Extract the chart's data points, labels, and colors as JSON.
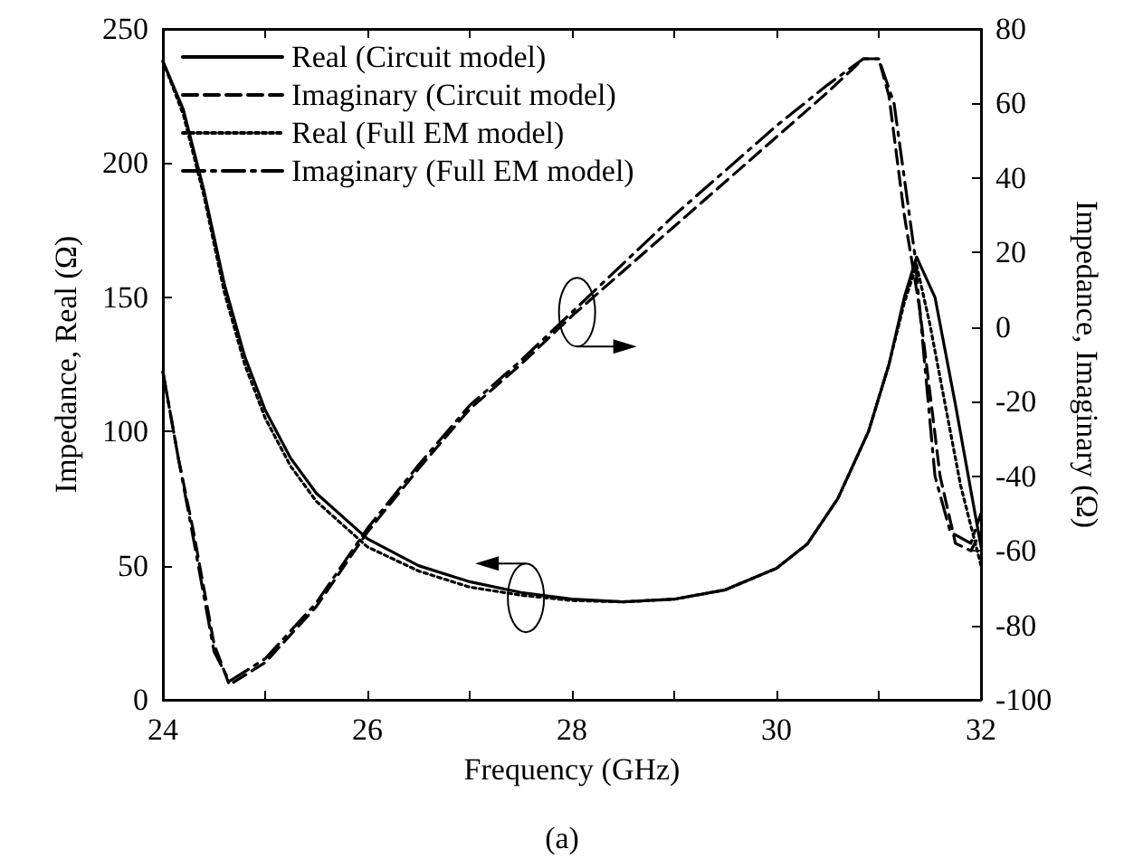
{
  "chart_data": {
    "type": "line",
    "xlabel": "Frequency (GHz)",
    "ylabel": "Impedance, Real (Ω)",
    "y2label": "Impedance, Imaginary (Ω)",
    "annotations": [
      "(a)"
    ],
    "xlim": [
      24,
      32
    ],
    "xticks": [
      24,
      {
        "value": 25,
        "label": null
      },
      26,
      {
        "value": 27,
        "label": null
      },
      28,
      {
        "value": 29,
        "label": null
      },
      30,
      {
        "value": 31,
        "label": null
      },
      32
    ],
    "ylim": [
      0,
      250
    ],
    "yticks": [
      0,
      50,
      100,
      150,
      200,
      250
    ],
    "y2lim": [
      -100,
      80
    ],
    "y2ticks": [
      -100,
      -80,
      -60,
      -40,
      -20,
      0,
      20,
      40,
      60,
      80
    ],
    "grid": false,
    "legend": "top left",
    "series": [
      {
        "name": "Real (Circuit model)",
        "color": "#000000",
        "line_style": "solid",
        "x": [
          24,
          24.2,
          24.4,
          24.6,
          24.8,
          25,
          25.25,
          25.5,
          26,
          26.5,
          27,
          27.5,
          28,
          28.5,
          29,
          29.5,
          30,
          30.3,
          30.6,
          30.9,
          31.1,
          31.25,
          31.37,
          31.55,
          31.75,
          32
        ],
        "values": [
          238,
          220,
          190,
          155,
          128,
          108,
          90,
          77,
          60,
          50,
          44,
          40,
          37.5,
          36.5,
          37.5,
          41,
          49,
          58,
          75,
          100,
          125,
          150,
          165,
          150,
          110,
          57
        ]
      },
      {
        "name": "Imaginary (Circuit model)",
        "color": "#000000",
        "line_style": "dashed",
        "axis": "y2",
        "x": [
          24,
          24.15,
          24.3,
          24.5,
          24.65,
          25,
          25.5,
          26,
          26.5,
          27,
          27.5,
          28,
          28.5,
          29,
          29.5,
          30,
          30.5,
          30.85,
          31,
          31.1,
          31.25,
          31.4,
          31.6,
          31.75,
          31.9,
          32
        ],
        "values": [
          -12,
          -35,
          -55,
          -85,
          -96,
          -90,
          -75,
          -55,
          -38,
          -22,
          -10,
          3,
          15,
          27,
          39,
          51,
          63,
          72,
          72,
          62,
          30,
          5,
          -40,
          -58,
          -60,
          -55
        ]
      },
      {
        "name": "Real (Full EM model)",
        "color": "#000000",
        "line_style": "dotted",
        "x": [
          24,
          24.2,
          24.4,
          24.6,
          24.8,
          25,
          25.25,
          25.5,
          26,
          26.5,
          27,
          27.5,
          28,
          28.5,
          29,
          29.5,
          30,
          30.3,
          30.6,
          30.9,
          31.1,
          31.25,
          31.37,
          31.5,
          31.8,
          32
        ],
        "values": [
          238,
          218,
          188,
          152,
          125,
          105,
          87,
          74,
          57,
          48,
          42,
          39,
          37,
          36.5,
          37.5,
          41,
          49,
          58,
          75,
          100,
          125,
          148,
          162,
          140,
          80,
          50
        ]
      },
      {
        "name": "Imaginary (Full EM model)",
        "color": "#000000",
        "line_style": "dashdot",
        "axis": "y2",
        "x": [
          24,
          24.15,
          24.3,
          24.5,
          24.65,
          25,
          25.5,
          26,
          26.5,
          27,
          27.5,
          28,
          28.5,
          29,
          29.5,
          30,
          30.5,
          30.85,
          31,
          31.15,
          31.35,
          31.55,
          31.7,
          31.9,
          32
        ],
        "values": [
          -12,
          -35,
          -57,
          -87,
          -95,
          -89,
          -74,
          -54,
          -37,
          -21,
          -9,
          4,
          17,
          30,
          42,
          54,
          65,
          72,
          72,
          60,
          20,
          -40,
          -55,
          -58,
          -50
        ]
      }
    ]
  }
}
